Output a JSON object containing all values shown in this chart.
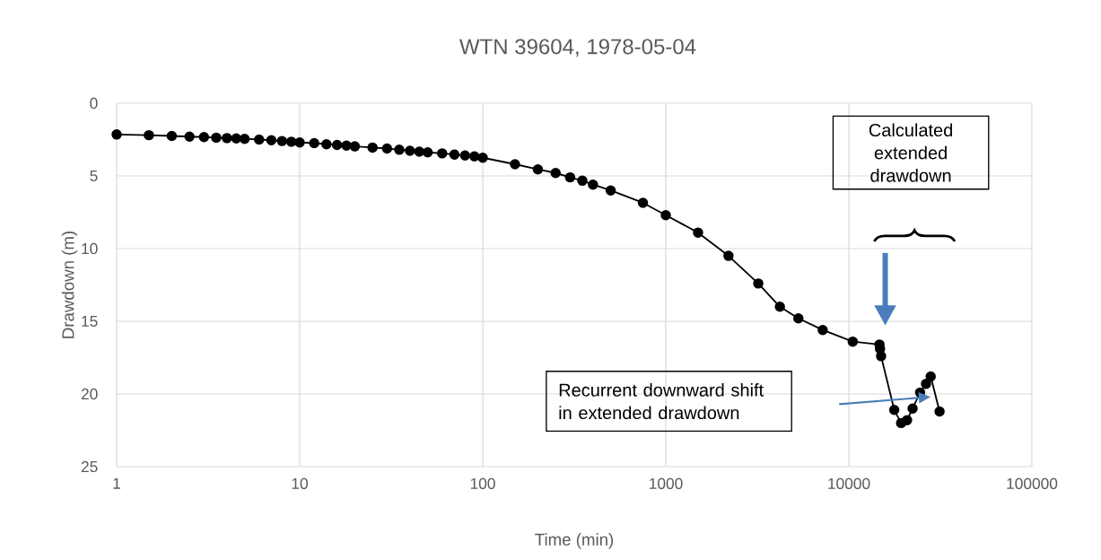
{
  "chart_data": {
    "type": "line",
    "title": "WTN 39604, 1978-05-04",
    "xlabel": "Time (min)",
    "ylabel": "Drawdown (m)",
    "x": [
      1,
      1.5,
      2,
      2.5,
      3,
      3.5,
      4,
      4.5,
      5,
      6,
      7,
      8,
      9,
      10,
      12,
      14,
      16,
      18,
      20,
      25,
      30,
      35,
      40,
      45,
      50,
      60,
      70,
      80,
      90,
      100,
      150,
      200,
      250,
      300,
      350,
      400,
      500,
      750,
      1000,
      1500,
      2200,
      3200,
      4200,
      5300,
      7200,
      10500,
      14700,
      14800,
      15000,
      17700,
      19300,
      20800,
      22300,
      24500,
      26400,
      28000,
      31300
    ],
    "values": [
      2.15,
      2.2,
      2.25,
      2.3,
      2.33,
      2.37,
      2.4,
      2.42,
      2.45,
      2.5,
      2.55,
      2.6,
      2.65,
      2.7,
      2.75,
      2.82,
      2.87,
      2.92,
      2.97,
      3.05,
      3.12,
      3.2,
      3.27,
      3.33,
      3.38,
      3.45,
      3.53,
      3.6,
      3.66,
      3.75,
      4.2,
      4.55,
      4.8,
      5.1,
      5.33,
      5.6,
      6.0,
      6.85,
      7.7,
      8.9,
      10.5,
      12.4,
      14.0,
      14.8,
      15.6,
      16.4,
      16.6,
      16.9,
      17.4,
      21.1,
      22.0,
      21.8,
      21.0,
      19.9,
      19.3,
      18.8,
      21.2
    ],
    "color": "#000000",
    "marker": "circle",
    "line_style": "solid",
    "log": "x",
    "grid": true,
    "xlim": [
      1,
      100000
    ],
    "xticks": [
      1,
      10,
      100,
      1000,
      10000,
      100000
    ],
    "ylim": [
      25,
      0
    ],
    "yticks": [
      0,
      5,
      10,
      15,
      20,
      25
    ],
    "annotations": [
      "Calculated extended drawdown",
      "Recurrent downward shift in extended drawdown"
    ]
  }
}
